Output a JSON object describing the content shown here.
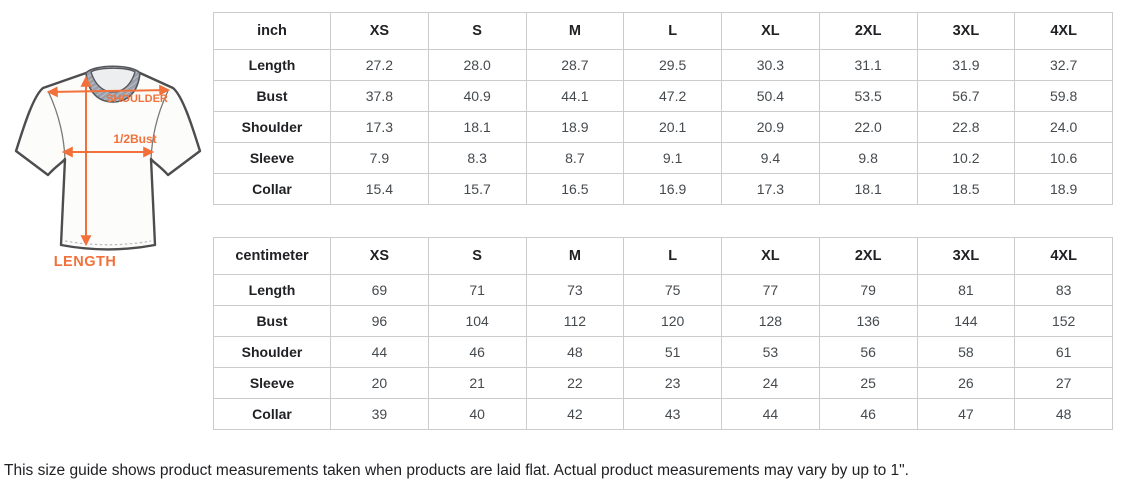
{
  "diagram": {
    "accent_color": "#f2713b",
    "labels": {
      "shoulder": "SHOULDER",
      "half_bust": "1/2Bust",
      "length": "LENGTH"
    }
  },
  "tables": [
    {
      "unit_label": "inch",
      "columns": [
        "XS",
        "S",
        "M",
        "L",
        "XL",
        "2XL",
        "3XL",
        "4XL"
      ],
      "rows": [
        {
          "label": "Length",
          "values": [
            "27.2",
            "28.0",
            "28.7",
            "29.5",
            "30.3",
            "31.1",
            "31.9",
            "32.7"
          ]
        },
        {
          "label": "Bust",
          "values": [
            "37.8",
            "40.9",
            "44.1",
            "47.2",
            "50.4",
            "53.5",
            "56.7",
            "59.8"
          ]
        },
        {
          "label": "Shoulder",
          "values": [
            "17.3",
            "18.1",
            "18.9",
            "20.1",
            "20.9",
            "22.0",
            "22.8",
            "24.0"
          ]
        },
        {
          "label": "Sleeve",
          "values": [
            "7.9",
            "8.3",
            "8.7",
            "9.1",
            "9.4",
            "9.8",
            "10.2",
            "10.6"
          ]
        },
        {
          "label": "Collar",
          "values": [
            "15.4",
            "15.7",
            "16.5",
            "16.9",
            "17.3",
            "18.1",
            "18.5",
            "18.9"
          ]
        }
      ]
    },
    {
      "unit_label": "centimeter",
      "columns": [
        "XS",
        "S",
        "M",
        "L",
        "XL",
        "2XL",
        "3XL",
        "4XL"
      ],
      "rows": [
        {
          "label": "Length",
          "values": [
            "69",
            "71",
            "73",
            "75",
            "77",
            "79",
            "81",
            "83"
          ]
        },
        {
          "label": "Bust",
          "values": [
            "96",
            "104",
            "112",
            "120",
            "128",
            "136",
            "144",
            "152"
          ]
        },
        {
          "label": "Shoulder",
          "values": [
            "44",
            "46",
            "48",
            "51",
            "53",
            "56",
            "58",
            "61"
          ]
        },
        {
          "label": "Sleeve",
          "values": [
            "20",
            "21",
            "22",
            "23",
            "24",
            "25",
            "26",
            "27"
          ]
        },
        {
          "label": "Collar",
          "values": [
            "39",
            "40",
            "42",
            "43",
            "44",
            "46",
            "47",
            "48"
          ]
        }
      ]
    }
  ],
  "note": "This size guide shows product measurements taken when products are laid flat. Actual product measurements may vary by up to 1\"."
}
